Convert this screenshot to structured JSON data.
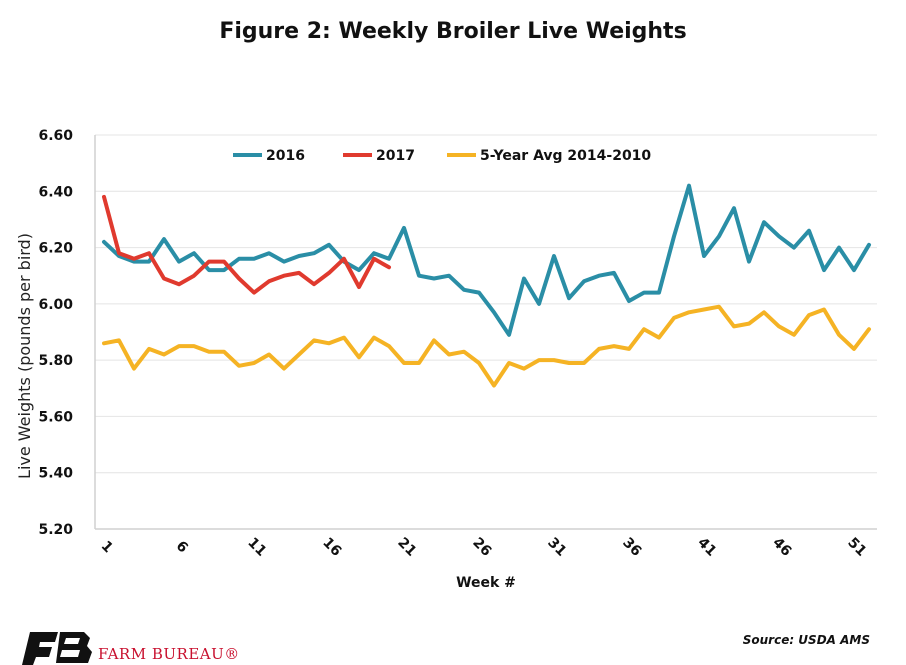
{
  "chart_data": {
    "type": "line",
    "title": "Figure 2: Weekly Broiler Live Weights",
    "xlabel": "Week #",
    "ylabel": "Live Weights (pounds per bird)",
    "ylim": [
      5.2,
      6.6
    ],
    "yticks": [
      "5.20",
      "5.40",
      "5.60",
      "5.80",
      "6.00",
      "6.20",
      "6.40",
      "6.60"
    ],
    "xlim": [
      1,
      52
    ],
    "xticks": [
      "1",
      "6",
      "11",
      "16",
      "21",
      "26",
      "31",
      "36",
      "41",
      "46",
      "51"
    ],
    "grid": true,
    "legend_position": "top",
    "series": [
      {
        "name": "2016",
        "color": "#2a8ea6",
        "x": [
          1,
          2,
          3,
          4,
          5,
          6,
          7,
          8,
          9,
          10,
          11,
          12,
          13,
          14,
          15,
          16,
          17,
          18,
          19,
          20,
          21,
          22,
          23,
          24,
          25,
          26,
          27,
          28,
          29,
          30,
          31,
          32,
          33,
          34,
          35,
          36,
          37,
          38,
          39,
          40,
          41,
          42,
          43,
          44,
          45,
          46,
          47,
          48,
          49,
          50,
          51,
          52
        ],
        "values": [
          6.22,
          6.17,
          6.15,
          6.15,
          6.23,
          6.15,
          6.18,
          6.12,
          6.12,
          6.16,
          6.16,
          6.18,
          6.15,
          6.17,
          6.18,
          6.21,
          6.15,
          6.12,
          6.18,
          6.16,
          6.27,
          6.1,
          6.09,
          6.1,
          6.05,
          6.04,
          5.97,
          5.89,
          6.09,
          6.0,
          6.17,
          6.02,
          6.08,
          6.1,
          6.11,
          6.01,
          6.04,
          6.04,
          6.24,
          6.42,
          6.17,
          6.24,
          6.34,
          6.15,
          6.29,
          6.24,
          6.2,
          6.26,
          6.12,
          6.2,
          6.12,
          6.21
        ]
      },
      {
        "name": "2017",
        "color": "#e03a2e",
        "x": [
          1,
          2,
          3,
          4,
          5,
          6,
          7,
          8,
          9,
          10,
          11,
          12,
          13,
          14,
          15,
          16,
          17,
          18,
          19,
          20
        ],
        "values": [
          6.38,
          6.18,
          6.16,
          6.18,
          6.09,
          6.07,
          6.1,
          6.15,
          6.15,
          6.09,
          6.04,
          6.08,
          6.1,
          6.11,
          6.07,
          6.11,
          6.16,
          6.06,
          6.16,
          6.13
        ]
      },
      {
        "name": "5-Year Avg 2014-2010",
        "color": "#f5b324",
        "x": [
          1,
          2,
          3,
          4,
          5,
          6,
          7,
          8,
          9,
          10,
          11,
          12,
          13,
          14,
          15,
          16,
          17,
          18,
          19,
          20,
          21,
          22,
          23,
          24,
          25,
          26,
          27,
          28,
          29,
          30,
          31,
          32,
          33,
          34,
          35,
          36,
          37,
          38,
          39,
          40,
          41,
          42,
          43,
          44,
          45,
          46,
          47,
          48,
          49,
          50,
          51,
          52
        ],
        "values": [
          5.86,
          5.87,
          5.77,
          5.84,
          5.82,
          5.85,
          5.85,
          5.83,
          5.83,
          5.78,
          5.79,
          5.82,
          5.77,
          5.82,
          5.87,
          5.86,
          5.88,
          5.81,
          5.88,
          5.85,
          5.79,
          5.79,
          5.87,
          5.82,
          5.83,
          5.79,
          5.71,
          5.79,
          5.77,
          5.8,
          5.8,
          5.79,
          5.79,
          5.84,
          5.85,
          5.84,
          5.91,
          5.88,
          5.95,
          5.97,
          5.98,
          5.99,
          5.92,
          5.93,
          5.97,
          5.92,
          5.89,
          5.96,
          5.98,
          5.89,
          5.84,
          5.91
        ]
      }
    ]
  },
  "source": "Source: USDA AMS",
  "brand": "FARM BUREAU®",
  "colors": {
    "axis": "#d0d0d0",
    "grid": "#e4e4e4",
    "brand": "#c8102e"
  }
}
